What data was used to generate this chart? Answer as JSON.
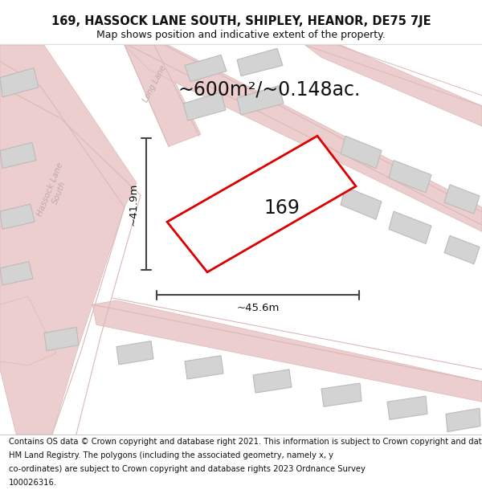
{
  "title_line1": "169, HASSOCK LANE SOUTH, SHIPLEY, HEANOR, DE75 7JE",
  "title_line2": "Map shows position and indicative extent of the property.",
  "footer_lines": [
    "Contains OS data © Crown copyright and database right 2021. This information is subject to Crown copyright and database rights 2023 and is reproduced with the permission of",
    "HM Land Registry. The polygons (including the associated geometry, namely x, y",
    "co-ordinates) are subject to Crown copyright and database rights 2023 Ordnance Survey",
    "100026316."
  ],
  "area_text": "~600m²/~0.148ac.",
  "label_169": "169",
  "dim_vertical": "~41.9m",
  "dim_horizontal": "~45.6m",
  "map_bg": "#f7f4f4",
  "road_fill": "#edcece",
  "road_edge": "#dbb8b8",
  "building_fill": "#d3d3d3",
  "building_edge": "#bbbbbb",
  "plot_fill": "#ffffff",
  "plot_edge": "#dd0000",
  "dim_color": "#444444",
  "street_color": "#bbaaaa",
  "title_fontsize": 10.5,
  "subtitle_fontsize": 9,
  "area_fontsize": 17,
  "label_fontsize": 17,
  "dim_fontsize": 9.5,
  "footer_fontsize": 7.2,
  "street_fontsize": 7.5
}
